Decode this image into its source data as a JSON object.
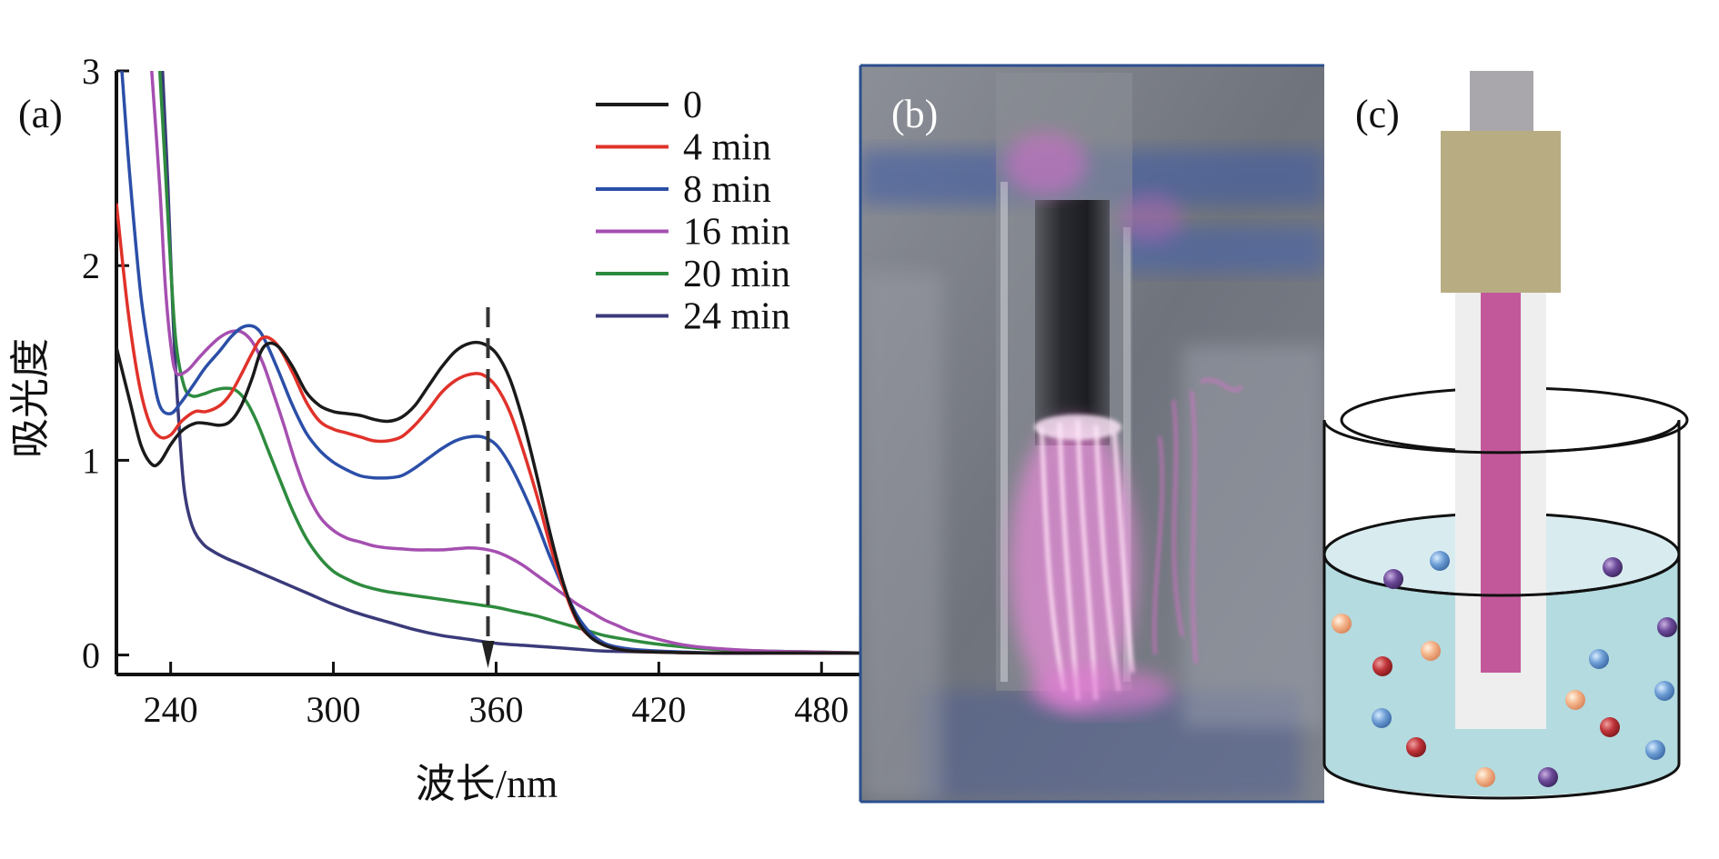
{
  "panels": {
    "a": "(a)",
    "b": "(b)",
    "c": "(c)"
  },
  "chart_data": {
    "type": "line",
    "xlabel": "波长/nm",
    "ylabel": "吸光度",
    "xlim": [
      220,
      495
    ],
    "ylim": [
      -0.1,
      3
    ],
    "xticks": [
      240,
      300,
      360,
      420,
      480
    ],
    "xtick_labels": [
      "240",
      "300",
      "360",
      "420",
      "480"
    ],
    "yticks": [
      0,
      1,
      2,
      3
    ],
    "ytick_labels": [
      "0",
      "1",
      "2",
      "3"
    ],
    "reference_line_x": 357,
    "legend_position": "top-right",
    "series": [
      {
        "name": "0",
        "color": "#1a1a1a",
        "x": [
          220,
          225,
          229,
          233,
          236,
          240,
          244,
          249,
          253,
          258,
          262,
          266,
          270,
          273,
          276,
          280,
          285,
          290,
          295,
          300,
          305,
          310,
          315,
          320,
          325,
          330,
          335,
          340,
          345,
          350,
          355,
          360,
          365,
          370,
          375,
          380,
          385,
          390,
          395,
          400,
          405,
          410,
          420,
          430,
          440,
          460,
          480,
          495
        ],
        "y": [
          1.58,
          1.3,
          1.08,
          0.98,
          0.99,
          1.08,
          1.15,
          1.19,
          1.19,
          1.18,
          1.2,
          1.28,
          1.42,
          1.55,
          1.6,
          1.58,
          1.48,
          1.35,
          1.28,
          1.25,
          1.24,
          1.23,
          1.21,
          1.2,
          1.22,
          1.28,
          1.38,
          1.48,
          1.56,
          1.6,
          1.6,
          1.55,
          1.42,
          1.2,
          0.92,
          0.62,
          0.36,
          0.18,
          0.09,
          0.05,
          0.03,
          0.02,
          0.015,
          0.012,
          0.01,
          0.01,
          0.01,
          0.01
        ]
      },
      {
        "name": "4 min",
        "color": "#e0322a",
        "x": [
          220,
          224,
          228,
          232,
          236,
          240,
          244,
          249,
          253,
          258,
          262,
          266,
          270,
          273,
          276,
          280,
          285,
          290,
          295,
          300,
          305,
          310,
          315,
          320,
          325,
          330,
          335,
          340,
          345,
          350,
          355,
          360,
          365,
          370,
          375,
          380,
          385,
          390,
          395,
          400,
          405,
          410,
          420,
          430,
          440,
          460,
          480,
          495
        ],
        "y": [
          2.32,
          1.8,
          1.42,
          1.2,
          1.12,
          1.13,
          1.2,
          1.25,
          1.25,
          1.28,
          1.34,
          1.44,
          1.55,
          1.62,
          1.63,
          1.58,
          1.45,
          1.3,
          1.2,
          1.16,
          1.14,
          1.12,
          1.1,
          1.1,
          1.12,
          1.18,
          1.26,
          1.35,
          1.41,
          1.44,
          1.44,
          1.38,
          1.25,
          1.05,
          0.82,
          0.56,
          0.34,
          0.17,
          0.09,
          0.05,
          0.03,
          0.02,
          0.015,
          0.012,
          0.01,
          0.01,
          0.01,
          0.01
        ]
      },
      {
        "name": "8 min",
        "color": "#2b4fa8",
        "x": [
          222,
          225,
          229,
          233,
          236,
          240,
          244,
          249,
          253,
          258,
          262,
          266,
          270,
          273,
          276,
          280,
          285,
          290,
          295,
          300,
          305,
          310,
          315,
          320,
          325,
          330,
          335,
          340,
          345,
          350,
          355,
          360,
          365,
          370,
          375,
          380,
          385,
          390,
          395,
          400,
          405,
          410,
          420,
          430,
          440,
          460,
          480,
          495
        ],
        "y": [
          3.0,
          2.45,
          1.85,
          1.48,
          1.28,
          1.24,
          1.3,
          1.4,
          1.48,
          1.56,
          1.63,
          1.68,
          1.69,
          1.66,
          1.58,
          1.45,
          1.28,
          1.14,
          1.05,
          0.99,
          0.95,
          0.92,
          0.91,
          0.91,
          0.92,
          0.96,
          1.01,
          1.06,
          1.1,
          1.12,
          1.12,
          1.08,
          0.98,
          0.84,
          0.68,
          0.5,
          0.34,
          0.2,
          0.11,
          0.06,
          0.04,
          0.03,
          0.02,
          0.015,
          0.01,
          0.01,
          0.01,
          0.01
        ]
      },
      {
        "name": "16 min",
        "color": "#a54fb0",
        "x": [
          233,
          236,
          238,
          240,
          242,
          246,
          250,
          254,
          258,
          262,
          266,
          270,
          274,
          278,
          282,
          286,
          290,
          295,
          300,
          305,
          310,
          315,
          320,
          325,
          330,
          335,
          340,
          345,
          350,
          355,
          360,
          365,
          370,
          375,
          380,
          385,
          390,
          395,
          400,
          405,
          410,
          420,
          430,
          440,
          460,
          480,
          495
        ],
        "y": [
          3.0,
          2.4,
          1.9,
          1.6,
          1.45,
          1.46,
          1.52,
          1.58,
          1.63,
          1.66,
          1.66,
          1.61,
          1.5,
          1.34,
          1.17,
          0.99,
          0.84,
          0.71,
          0.64,
          0.6,
          0.58,
          0.56,
          0.55,
          0.545,
          0.54,
          0.54,
          0.54,
          0.545,
          0.55,
          0.545,
          0.53,
          0.5,
          0.46,
          0.41,
          0.36,
          0.31,
          0.26,
          0.22,
          0.18,
          0.15,
          0.12,
          0.08,
          0.05,
          0.035,
          0.02,
          0.015,
          0.01
        ]
      },
      {
        "name": "20 min",
        "color": "#2e8b3e",
        "x": [
          236,
          238,
          240,
          242,
          245,
          248,
          252,
          256,
          260,
          264,
          268,
          272,
          276,
          280,
          285,
          290,
          295,
          300,
          305,
          310,
          315,
          320,
          325,
          330,
          335,
          340,
          345,
          350,
          355,
          360,
          365,
          370,
          375,
          380,
          385,
          390,
          395,
          400,
          410,
          420,
          430,
          440,
          460,
          480,
          495
        ],
        "y": [
          3.0,
          2.5,
          2.0,
          1.6,
          1.38,
          1.33,
          1.34,
          1.36,
          1.37,
          1.36,
          1.3,
          1.19,
          1.05,
          0.91,
          0.74,
          0.6,
          0.5,
          0.43,
          0.39,
          0.36,
          0.34,
          0.325,
          0.315,
          0.305,
          0.295,
          0.285,
          0.275,
          0.265,
          0.255,
          0.245,
          0.23,
          0.215,
          0.2,
          0.18,
          0.16,
          0.14,
          0.12,
          0.1,
          0.075,
          0.055,
          0.04,
          0.03,
          0.02,
          0.015,
          0.01
        ]
      },
      {
        "name": "24 min",
        "color": "#3a3a7a",
        "x": [
          237,
          239,
          241,
          243,
          245,
          248,
          252,
          256,
          260,
          265,
          270,
          275,
          280,
          290,
          300,
          310,
          320,
          330,
          340,
          350,
          360,
          370,
          380,
          390,
          400,
          420,
          440,
          460,
          480,
          495
        ],
        "y": [
          3.0,
          2.4,
          1.7,
          1.2,
          0.85,
          0.66,
          0.57,
          0.53,
          0.5,
          0.47,
          0.44,
          0.41,
          0.38,
          0.32,
          0.26,
          0.21,
          0.17,
          0.13,
          0.1,
          0.08,
          0.06,
          0.05,
          0.04,
          0.03,
          0.02,
          0.015,
          0.01,
          0.01,
          0.01,
          0.01
        ]
      }
    ]
  }
}
